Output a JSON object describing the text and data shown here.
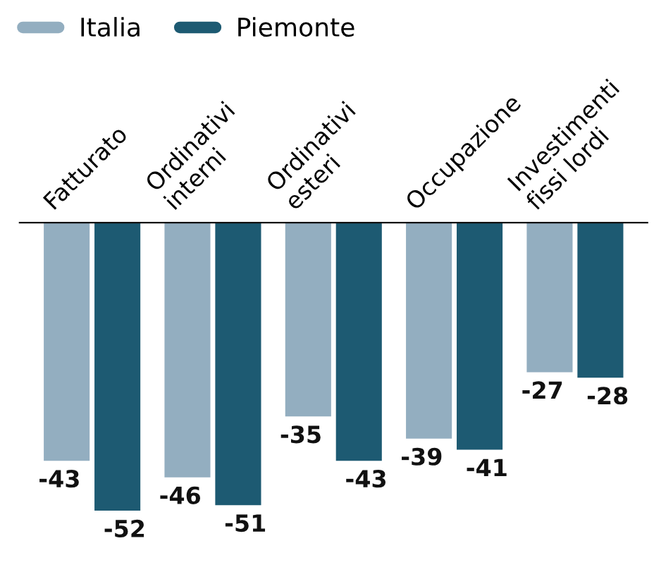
{
  "chart_data": {
    "type": "bar",
    "categories": [
      "Fatturato",
      "Ordinativi\ninterni",
      "Ordinativi\nesteri",
      "Occupazione",
      "Investimenti\nfissi lordi"
    ],
    "series": [
      {
        "name": "Italia",
        "color": "#93aec0",
        "values": [
          -43,
          -46,
          -35,
          -39,
          -27
        ]
      },
      {
        "name": "Piemonte",
        "color": "#1d5a72",
        "values": [
          -52,
          -51,
          -43,
          -41,
          -28
        ]
      }
    ],
    "data_labels": true,
    "legend": "top left",
    "grid": false
  }
}
